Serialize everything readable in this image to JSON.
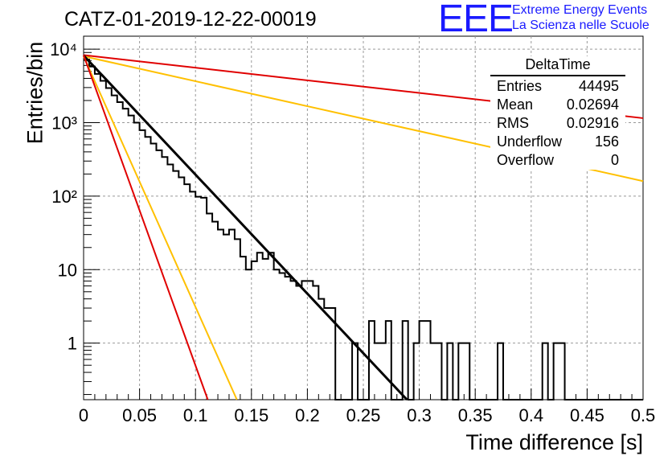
{
  "title": "CATZ-01-2019-12-22-00019",
  "logo": {
    "mark": "EEE",
    "line1": "Extreme Energy Events",
    "line2": "La Scienza nelle Scuole"
  },
  "stats": {
    "name": "DeltaTime",
    "rows": [
      {
        "label": "Entries",
        "value": "44495"
      },
      {
        "label": "Mean",
        "value": "0.02694"
      },
      {
        "label": "RMS",
        "value": "0.02916"
      },
      {
        "label": "Underflow",
        "value": "156"
      },
      {
        "label": "Overflow",
        "value": "0"
      }
    ]
  },
  "colors": {
    "hist": "#000000",
    "fit": "#000000",
    "red": "#e00000",
    "yellow": "#ffc000",
    "grid": "#999999"
  },
  "chart_data": {
    "type": "line",
    "xlabel": "Time difference [s]",
    "ylabel": "Entries/bin",
    "xlim": [
      0,
      0.5
    ],
    "ylim": [
      0.17,
      15000
    ],
    "log_y": true,
    "grid": true,
    "xticks": [
      0,
      0.05,
      0.1,
      0.15,
      0.2,
      0.25,
      0.3,
      0.35,
      0.4,
      0.45,
      0.5
    ],
    "xtick_labels": [
      "0",
      "0.05",
      "0.1",
      "0.15",
      "0.2",
      "0.25",
      "0.3",
      "0.35",
      "0.4",
      "0.45",
      "0.5"
    ],
    "yticks": [
      1,
      10,
      100,
      1000,
      10000
    ],
    "ytick_labels": [
      "1",
      "10",
      "10²",
      "10³",
      "10⁴"
    ],
    "bin_width": 0.005,
    "histogram": [
      7200,
      5800,
      4600,
      3700,
      2950,
      2350,
      1900,
      1550,
      1250,
      1000,
      790,
      640,
      520,
      420,
      340,
      270,
      220,
      180,
      145,
      115,
      98,
      95,
      58,
      45,
      35,
      30,
      35,
      26,
      15,
      10,
      13,
      17,
      14,
      17,
      10,
      9,
      8,
      7,
      6,
      7,
      7,
      6,
      4,
      3,
      3,
      0,
      0,
      0,
      1,
      0,
      0,
      2,
      1,
      1,
      2,
      0,
      0,
      2,
      0,
      1,
      2,
      2,
      1,
      1,
      0,
      1,
      0,
      1,
      1,
      0,
      0,
      0,
      0,
      0,
      1,
      0,
      0,
      0,
      0,
      0,
      0,
      0,
      1,
      0,
      1,
      1,
      0,
      0,
      0,
      0,
      0,
      0,
      0,
      0,
      0,
      0,
      0,
      0,
      0,
      0
    ],
    "lines": [
      {
        "name": "",
        "color": "red",
        "x": [
          0,
          0.5
        ],
        "y": [
          8300,
          1150
        ]
      },
      {
        "name": "",
        "color": "yellow",
        "x": [
          0,
          0.5
        ],
        "y": [
          8000,
          160
        ]
      },
      {
        "name": "",
        "color": "black",
        "x": [
          0,
          0.289
        ],
        "y": [
          8200,
          0.17
        ]
      },
      {
        "name": "",
        "color": "yellow",
        "x": [
          0,
          0.137
        ],
        "y": [
          8000,
          0.17
        ]
      },
      {
        "name": "",
        "color": "red",
        "x": [
          0,
          0.111
        ],
        "y": [
          8300,
          0.17
        ]
      }
    ]
  }
}
